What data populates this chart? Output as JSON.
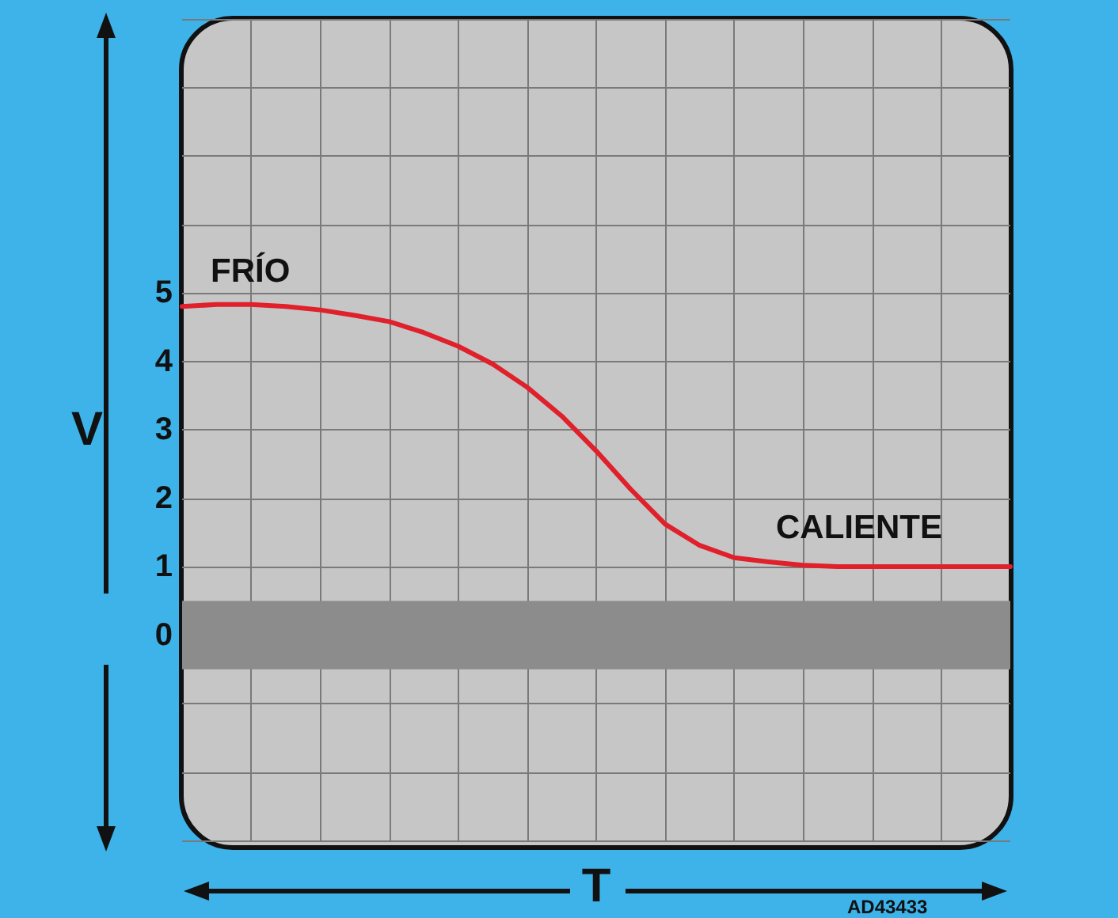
{
  "chart_data": {
    "type": "line",
    "xlabel": "T",
    "ylabel": "V",
    "categories": [
      null,
      null,
      null,
      null,
      null,
      null,
      null,
      null,
      null,
      null,
      null,
      null,
      null,
      null,
      null,
      null,
      null,
      null,
      null,
      null,
      null,
      null,
      null,
      null,
      null
    ],
    "series": [
      {
        "color": "#e0202a",
        "values": [
          4.8,
          4.83,
          4.83,
          4.8,
          4.75,
          4.67,
          4.58,
          4.42,
          4.22,
          3.96,
          3.62,
          3.2,
          2.69,
          2.13,
          1.62,
          1.31,
          1.13,
          1.07,
          1.02,
          1.0,
          1.0,
          1.0,
          1.0,
          1.0,
          1.0
        ]
      }
    ],
    "ylim": [
      -3,
      9
    ],
    "yticks": [
      {
        "value": -3,
        "label": null
      },
      {
        "value": -2,
        "label": null
      },
      {
        "value": -1,
        "label": null
      },
      0,
      1,
      2,
      3,
      4,
      5,
      {
        "value": 6,
        "label": null
      },
      {
        "value": 7,
        "label": null
      },
      {
        "value": 8,
        "label": null
      },
      {
        "value": 9,
        "label": null
      }
    ],
    "bands": [
      {
        "axis": "y",
        "from": -0.5,
        "to": 0.5,
        "color": "#8c8c8c"
      }
    ],
    "annotations": [
      "FRÍO",
      "CALIENTE",
      "AD43433"
    ],
    "grid": true,
    "marker": "none",
    "line_style": "solid"
  }
}
